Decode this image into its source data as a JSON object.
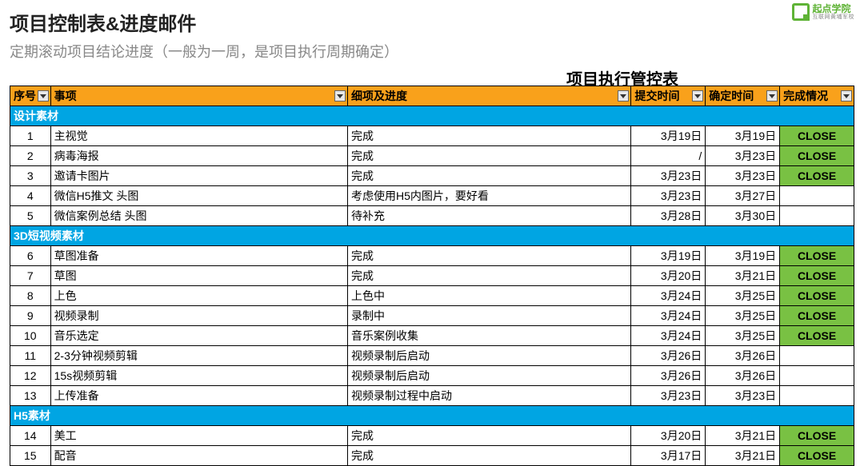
{
  "logo": {
    "cn": "起点学院",
    "sub": "互联网黄埔军校"
  },
  "heading": "项目控制表&进度邮件",
  "subheading": "定期滚动项目结论进度（一般为一周，是项目执行周期确定）",
  "table_title": "项目执行管控表",
  "columns": {
    "seq": "序号",
    "item": "事项",
    "detail": "细项及进度",
    "submit": "提交时间",
    "confirm": "确定时间",
    "status": "完成情况"
  },
  "colors": {
    "header_bg": "#f9a11b",
    "section_bg": "#00a5e3",
    "close_bg": "#79c143",
    "logo_green": "#5fb336"
  },
  "sections": [
    {
      "label": "设计素材",
      "rows": [
        {
          "seq": "1",
          "item": "主视觉",
          "detail": "完成",
          "submit": "3月19日",
          "confirm": "3月19日",
          "status": "CLOSE"
        },
        {
          "seq": "2",
          "item": "病毒海报",
          "detail": "完成",
          "submit": "/",
          "confirm": "3月23日",
          "status": "CLOSE"
        },
        {
          "seq": "3",
          "item": "邀请卡图片",
          "detail": "完成",
          "submit": "3月23日",
          "confirm": "3月23日",
          "status": "CLOSE"
        },
        {
          "seq": "4",
          "item": "微信H5推文 头图",
          "detail": "考虑使用H5内图片，要好看",
          "submit": "3月23日",
          "confirm": "3月27日",
          "status": ""
        },
        {
          "seq": "5",
          "item": "微信案例总结 头图",
          "detail": "待补充",
          "submit": "3月28日",
          "confirm": "3月30日",
          "status": ""
        }
      ]
    },
    {
      "label": "3D短视频素材",
      "rows": [
        {
          "seq": "6",
          "item": "草图准备",
          "detail": "完成",
          "submit": "3月19日",
          "confirm": "3月19日",
          "status": "CLOSE"
        },
        {
          "seq": "7",
          "item": "草图",
          "detail": "完成",
          "submit": "3月20日",
          "confirm": "3月21日",
          "status": "CLOSE"
        },
        {
          "seq": "8",
          "item": "上色",
          "detail": "上色中",
          "submit": "3月24日",
          "confirm": "3月25日",
          "status": "CLOSE"
        },
        {
          "seq": "9",
          "item": "视频录制",
          "detail": "录制中",
          "submit": "3月24日",
          "confirm": "3月25日",
          "status": "CLOSE"
        },
        {
          "seq": "10",
          "item": "音乐选定",
          "detail": "音乐案例收集",
          "submit": "3月24日",
          "confirm": "3月25日",
          "status": "CLOSE"
        },
        {
          "seq": "11",
          "item": "2-3分钟视频剪辑",
          "detail": "视频录制后启动",
          "submit": "3月26日",
          "confirm": "3月26日",
          "status": ""
        },
        {
          "seq": "12",
          "item": "15s视频剪辑",
          "detail": "视频录制后启动",
          "submit": "3月26日",
          "confirm": "3月26日",
          "status": ""
        },
        {
          "seq": "13",
          "item": "上传准备",
          "detail": "视频录制过程中启动",
          "submit": "3月23日",
          "confirm": "3月23日",
          "status": ""
        }
      ]
    },
    {
      "label": "H5素材",
      "rows": [
        {
          "seq": "14",
          "item": "美工",
          "detail": "完成",
          "submit": "3月20日",
          "confirm": "3月21日",
          "status": "CLOSE"
        },
        {
          "seq": "15",
          "item": "配音",
          "detail": "完成",
          "submit": "3月17日",
          "confirm": "3月21日",
          "status": "CLOSE"
        }
      ]
    }
  ]
}
